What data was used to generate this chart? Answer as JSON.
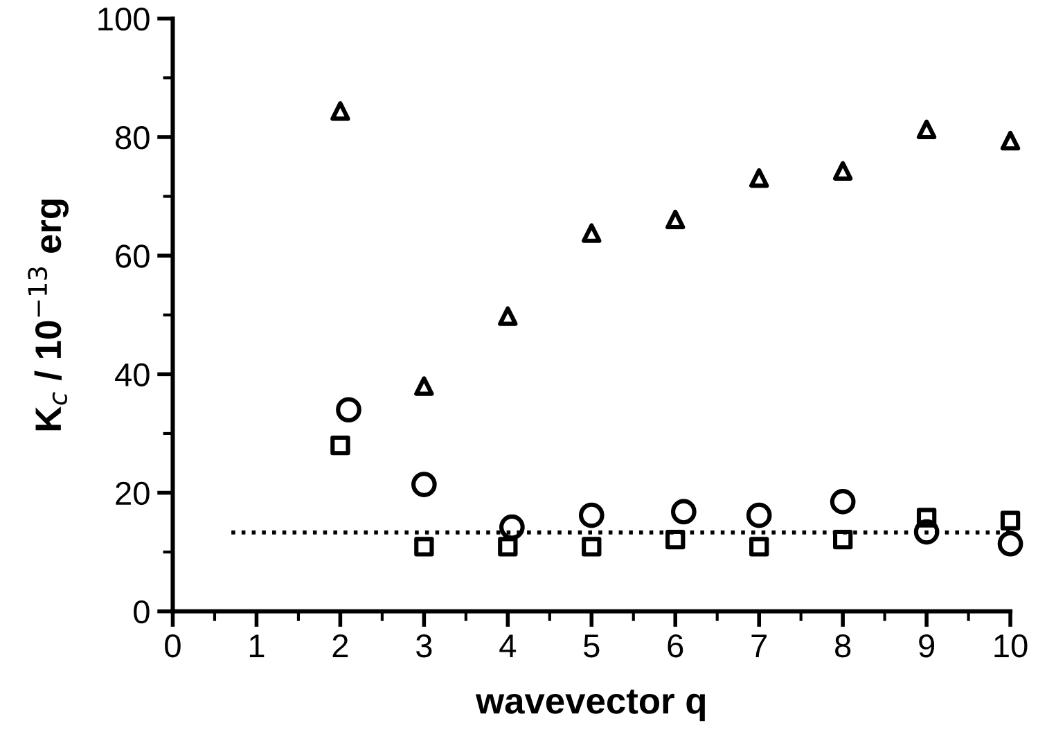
{
  "chart_data": {
    "type": "scatter",
    "xlabel": "wavevector q",
    "ylabel": "K$_{c}$ / 10$^{−13}$ erg",
    "xlim": [
      0,
      10
    ],
    "ylim": [
      0,
      100
    ],
    "xticks": [
      0,
      1,
      2,
      3,
      4,
      5,
      6,
      7,
      8,
      9,
      10
    ],
    "yticks": [
      0,
      20,
      40,
      60,
      80,
      100
    ],
    "grid": false,
    "legend": false,
    "series": [
      {
        "marker": "triangle",
        "color": "#000000",
        "x": [
          2,
          3,
          4,
          5,
          6,
          7,
          8,
          9,
          10
        ],
        "values": [
          84.4,
          38.0,
          49.8,
          63.8,
          66.1,
          73.1,
          74.3,
          81.3,
          79.4
        ]
      },
      {
        "marker": "circle",
        "color": "#000000",
        "x": [
          2.1,
          3,
          4.05,
          5,
          6.1,
          7,
          8,
          9,
          10
        ],
        "values": [
          34.0,
          21.4,
          14.2,
          16.2,
          16.8,
          16.2,
          18.5,
          13.4,
          11.4
        ]
      },
      {
        "marker": "square",
        "color": "#000000",
        "x": [
          2,
          3,
          4,
          5,
          6,
          7,
          8,
          9,
          10
        ],
        "values": [
          28.0,
          10.9,
          10.9,
          10.9,
          12.1,
          10.9,
          12.1,
          15.8,
          15.3
        ]
      },
      {
        "type": "line",
        "marker": "none",
        "line_style": "dotted",
        "color": "#000000",
        "x": [
          0.7,
          10
        ],
        "values": [
          13.3,
          13.3
        ]
      }
    ]
  }
}
